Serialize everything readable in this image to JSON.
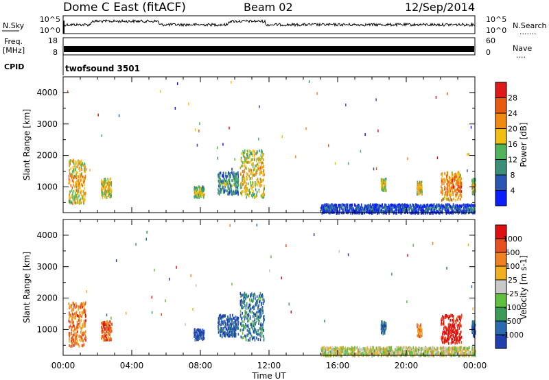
{
  "header": {
    "station": "Dome C East (fitACF)",
    "beam": "Beam 02",
    "date": "12/Sep/2014"
  },
  "nsky_panel": {
    "label": "N.Sky",
    "ticks": [
      "10^5",
      "10^0"
    ],
    "right_label": "N.Search",
    "right_ticks": [
      "10^5",
      "10^0"
    ],
    "dots": "......."
  },
  "freq_panel": {
    "label_line1": "Freq.",
    "label_line2": "[MHz]",
    "ticks": [
      "18",
      "8"
    ],
    "right_label": "Nave",
    "right_ticks": [
      "60",
      "0"
    ],
    "dots": "...."
  },
  "cpid_panel": {
    "label": "CPID",
    "mode": "twofsound 3501"
  },
  "colors": {
    "power": [
      "#0b1eff",
      "#2a55b0",
      "#3b8f78",
      "#4fb45a",
      "#f0c010",
      "#f08a10",
      "#e85a10",
      "#e01818"
    ],
    "velocity": [
      "#2040b0",
      "#2a6ab0",
      "#3a9a58",
      "#60c040",
      "#c8c8c8",
      "#f0b020",
      "#f08020",
      "#e85020",
      "#e01010"
    ]
  },
  "chart_data": [
    {
      "type": "heatmap",
      "ylabel": "Slant Range [km]",
      "ylim": [
        180,
        4500
      ],
      "yticks": [
        "1000",
        "2000",
        "3000",
        "4000"
      ],
      "xlabel": "Time UT",
      "xlim": [
        "00:00",
        "24:00"
      ],
      "xticks": [
        "00:00",
        "04:00",
        "08:00",
        "12:00",
        "16:00",
        "20:00",
        "00:00"
      ],
      "colorbar_label": "Power [dB]",
      "colorbar_ticks": [
        "28",
        "24",
        "20",
        "16",
        "12",
        "8",
        "4"
      ],
      "colorbar_range": [
        0,
        32
      ],
      "echo_regions": [
        {
          "t0": 0.3,
          "t1": 1.3,
          "r0": 500,
          "r1": 1900,
          "level": 0.6
        },
        {
          "t0": 2.2,
          "t1": 2.8,
          "r0": 700,
          "r1": 1300,
          "level": 0.55
        },
        {
          "t0": 7.6,
          "t1": 8.2,
          "r0": 700,
          "r1": 1050,
          "level": 0.45
        },
        {
          "t0": 9.0,
          "t1": 10.2,
          "r0": 800,
          "r1": 1500,
          "level": 0.3
        },
        {
          "t0": 10.3,
          "t1": 11.7,
          "r0": 700,
          "r1": 2200,
          "level": 0.55
        },
        {
          "t0": 15.0,
          "t1": 24.0,
          "r0": 200,
          "r1": 480,
          "level": 0.15
        },
        {
          "t0": 18.5,
          "t1": 18.8,
          "r0": 900,
          "r1": 1300,
          "level": 0.5
        },
        {
          "t0": 20.6,
          "t1": 20.9,
          "r0": 800,
          "r1": 1200,
          "level": 0.6
        },
        {
          "t0": 22.0,
          "t1": 23.2,
          "r0": 600,
          "r1": 1500,
          "level": 0.7
        },
        {
          "t0": 23.8,
          "t1": 24.0,
          "r0": 800,
          "r1": 1300,
          "level": 0.45
        }
      ]
    },
    {
      "type": "heatmap",
      "ylabel": "Slant Range [km]",
      "ylim": [
        180,
        4500
      ],
      "yticks": [
        "1000",
        "2000",
        "3000",
        "4000"
      ],
      "xlabel": "Time UT",
      "xlim": [
        "00:00",
        "24:00"
      ],
      "xticks": [
        "00:00",
        "04:00",
        "08:00",
        "12:00",
        "16:00",
        "20:00",
        "00:00"
      ],
      "colorbar_label": "Velocity [m s-1]",
      "colorbar_ticks": [
        "1000",
        "500",
        "100",
        "25",
        "-25",
        "-100",
        "-500",
        "-1000"
      ],
      "echo_regions": [
        {
          "t0": 0.3,
          "t1": 1.3,
          "r0": 500,
          "r1": 1900,
          "level": 0.75
        },
        {
          "t0": 2.2,
          "t1": 2.8,
          "r0": 700,
          "r1": 1300,
          "level": 0.8
        },
        {
          "t0": 7.6,
          "t1": 8.2,
          "r0": 700,
          "r1": 1050,
          "level": 0.05
        },
        {
          "t0": 9.0,
          "t1": 10.2,
          "r0": 800,
          "r1": 1500,
          "level": 0.12
        },
        {
          "t0": 10.3,
          "t1": 11.7,
          "r0": 700,
          "r1": 2200,
          "level": 0.2
        },
        {
          "t0": 15.0,
          "t1": 24.0,
          "r0": 200,
          "r1": 480,
          "level": 0.5
        },
        {
          "t0": 18.5,
          "t1": 18.8,
          "r0": 900,
          "r1": 1300,
          "level": 0.2
        },
        {
          "t0": 20.6,
          "t1": 20.9,
          "r0": 800,
          "r1": 1200,
          "level": 0.7
        },
        {
          "t0": 22.0,
          "t1": 23.2,
          "r0": 600,
          "r1": 1500,
          "level": 0.95
        },
        {
          "t0": 23.8,
          "t1": 24.0,
          "r0": 800,
          "r1": 1300,
          "level": 0.1
        }
      ]
    }
  ]
}
